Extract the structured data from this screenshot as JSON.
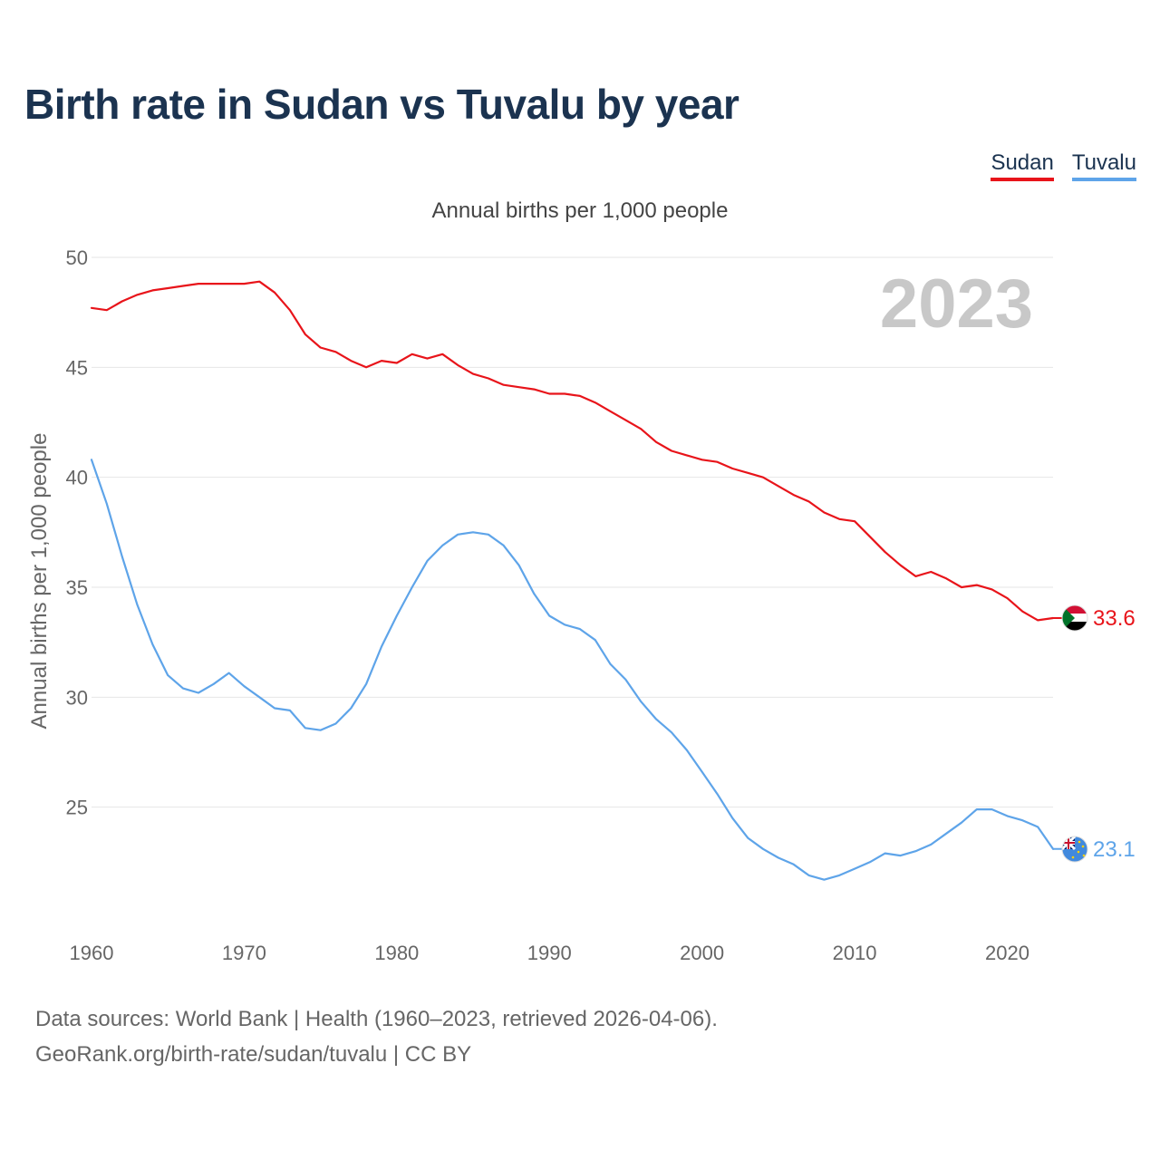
{
  "chart_data": {
    "type": "line",
    "title": "Birth rate in Sudan vs Tuvalu by year",
    "subtitle": "Annual births per 1,000 people",
    "ylabel": "Annual births per 1,000 people",
    "xlabel": "",
    "year_watermark": "2023",
    "xlim": [
      1960,
      2023
    ],
    "ylim": [
      20,
      50
    ],
    "x_ticks": [
      1960,
      1970,
      1980,
      1990,
      2000,
      2010,
      2020
    ],
    "y_ticks": [
      25,
      30,
      35,
      40,
      45,
      50
    ],
    "grid": true,
    "legend": "top-right",
    "x": [
      1960,
      1961,
      1962,
      1963,
      1964,
      1965,
      1966,
      1967,
      1968,
      1969,
      1970,
      1971,
      1972,
      1973,
      1974,
      1975,
      1976,
      1977,
      1978,
      1979,
      1980,
      1981,
      1982,
      1983,
      1984,
      1985,
      1986,
      1987,
      1988,
      1989,
      1990,
      1991,
      1992,
      1993,
      1994,
      1995,
      1996,
      1997,
      1998,
      1999,
      2000,
      2001,
      2002,
      2003,
      2004,
      2005,
      2006,
      2007,
      2008,
      2009,
      2010,
      2011,
      2012,
      2013,
      2014,
      2015,
      2016,
      2017,
      2018,
      2019,
      2020,
      2021,
      2022,
      2023
    ],
    "series": [
      {
        "name": "Sudan",
        "color": "#e8141a",
        "end_label": "33.6",
        "values": [
          47.7,
          47.6,
          48.0,
          48.3,
          48.5,
          48.6,
          48.7,
          48.8,
          48.8,
          48.8,
          48.8,
          48.9,
          48.4,
          47.6,
          46.5,
          45.9,
          45.7,
          45.3,
          45.0,
          45.3,
          45.2,
          45.6,
          45.4,
          45.6,
          45.1,
          44.7,
          44.5,
          44.2,
          44.1,
          44.0,
          43.8,
          43.8,
          43.7,
          43.4,
          43.0,
          42.6,
          42.2,
          41.6,
          41.2,
          41.0,
          40.8,
          40.7,
          40.4,
          40.2,
          40.0,
          39.6,
          39.2,
          38.9,
          38.4,
          38.1,
          38.0,
          37.3,
          36.6,
          36.0,
          35.5,
          35.7,
          35.4,
          35.0,
          35.1,
          34.9,
          34.5,
          33.9,
          33.5,
          33.6
        ]
      },
      {
        "name": "Tuvalu",
        "color": "#5ea4e9",
        "end_label": "23.1",
        "values": [
          40.8,
          38.8,
          36.4,
          34.2,
          32.4,
          31.0,
          30.4,
          30.2,
          30.6,
          31.1,
          30.5,
          30.0,
          29.5,
          29.4,
          28.6,
          28.5,
          28.8,
          29.5,
          30.6,
          32.3,
          33.7,
          35.0,
          36.2,
          36.9,
          37.4,
          37.5,
          37.4,
          36.9,
          36.0,
          34.7,
          33.7,
          33.3,
          33.1,
          32.6,
          31.5,
          30.8,
          29.8,
          29.0,
          28.4,
          27.6,
          26.6,
          25.6,
          24.5,
          23.6,
          23.1,
          22.7,
          22.4,
          21.9,
          21.7,
          21.9,
          22.2,
          22.5,
          22.9,
          22.8,
          23.0,
          23.3,
          23.8,
          24.3,
          24.9,
          24.9,
          24.6,
          24.4,
          24.1,
          23.1
        ]
      }
    ]
  },
  "legend_items": [
    "Sudan",
    "Tuvalu"
  ],
  "footer": {
    "line1": "Data sources: World Bank | Health (1960–2023, retrieved 2026-04-06).",
    "line2": "GeoRank.org/birth-rate/sudan/tuvalu | CC BY"
  },
  "flags": [
    "sudan-flag-icon",
    "tuvalu-flag-icon"
  ]
}
